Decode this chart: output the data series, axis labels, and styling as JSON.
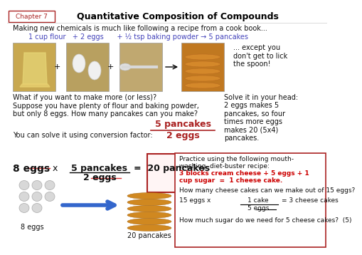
{
  "title": "Quantitative Composition of Compounds",
  "chapter_label": "Chapter 7",
  "bg_color": "#ffffff",
  "title_color": "#000000",
  "blue_color": "#4444bb",
  "red_color": "#cc0000",
  "dark_red": "#aa2222",
  "body_text_color": "#111111",
  "intro_line": "Making new chemicals is much like following a recipe from a cook book...",
  "recipe_line": "1 cup flour   + 2 eggs      + ½ tsp baking powder → 5 pancakes",
  "side_note": "... except you\ndon't get to lick\nthe spoon!",
  "what_if": "What if you want to make more (or less)?\nSuppose you have plenty of flour and baking powder,\nbut only 8 eggs. How many pancakes can you make?",
  "solve_head": "Solve it in your head:",
  "solve_body": "2 eggs makes 5\npancakes, so four\ntimes more eggs\nmakes 20 (5x4)\npancakes.",
  "conversion_label": "You can solve it using conversion factor:",
  "conv_top": "5 pancakes",
  "conv_bot": "2 eggs",
  "eq_left": "8 eggs",
  "eq_x": "x",
  "eq_frac_top": "5 pancakes",
  "eq_frac_bot": "2 eggs",
  "eq_right": "=  20 pancakes",
  "eggs_label": "8 eggs",
  "pancakes_label": "20 pancakes",
  "prac_header": "Practice using the following mouth-\nwashing, diet-buster recipe:",
  "prac_recipe": "3 blocks cream cheese + 5 eggs + 1\ncup sugar  =  1 cheese cake.",
  "prac_q1": "How many cheese cakes can we make out of 15 eggs?",
  "prac_eq_left": "15 eggs x",
  "prac_frac_top": "1 cake",
  "prac_frac_bot": "5 eggs",
  "prac_eq_right": "= 3 cheese cakes",
  "prac_q2": "How much sugar do we need for 5 cheese cakes?  (5)",
  "img_flour_color": "#c8a850",
  "img_egg_color": "#b8a060",
  "img_spoon_color": "#c0a870",
  "img_pancake_color": "#c07820"
}
